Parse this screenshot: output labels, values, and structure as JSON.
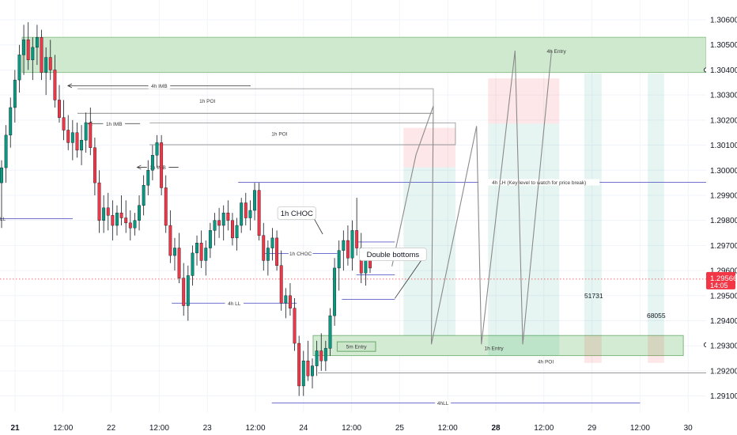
{
  "chart_data": {
    "type": "candlestick",
    "y_axis": {
      "range": [
        1.2893,
        1.3065
      ],
      "ticks": [
        "1.30600",
        "1.30500",
        "1.30400",
        "1.30300",
        "1.30200",
        "1.30100",
        "1.30000",
        "1.29900",
        "1.29800",
        "1.29700",
        "1.29600",
        "1.29500",
        "1.29400",
        "1.29300",
        "1.29200",
        "1.29100",
        "1.29000"
      ]
    },
    "x_axis": {
      "ticks": [
        {
          "label": "21",
          "bold": true,
          "t": 0.0
        },
        {
          "label": "12:00",
          "bold": false,
          "t": 0.5
        },
        {
          "label": "22",
          "bold": false,
          "t": 1.0
        },
        {
          "label": "12:00",
          "bold": false,
          "t": 1.5
        },
        {
          "label": "23",
          "bold": false,
          "t": 2.0
        },
        {
          "label": "12:00",
          "bold": false,
          "t": 2.5
        },
        {
          "label": "24",
          "bold": false,
          "t": 3.0
        },
        {
          "label": "12:00",
          "bold": false,
          "t": 3.5
        },
        {
          "label": "25",
          "bold": false,
          "t": 4.0
        },
        {
          "label": "12:00",
          "bold": false,
          "t": 4.5
        },
        {
          "label": "28",
          "bold": true,
          "t": 5.0
        },
        {
          "label": "12:00",
          "bold": false,
          "t": 5.5
        },
        {
          "label": "29",
          "bold": false,
          "t": 6.0
        },
        {
          "label": "12:00",
          "bold": false,
          "t": 6.5
        },
        {
          "label": "30",
          "bold": false,
          "t": 7.0
        }
      ]
    },
    "price_badge": {
      "price": 1.29566,
      "label": "1.29566",
      "countdown": "14:05",
      "color": "#f23645"
    },
    "candles": [
      [
        1.2995,
        1.3004,
        1.2977,
        1.3001
      ],
      [
        1.3001,
        1.3018,
        1.2995,
        1.3014
      ],
      [
        1.3014,
        1.3029,
        1.3009,
        1.3025
      ],
      [
        1.3025,
        1.304,
        1.3019,
        1.3036
      ],
      [
        1.3036,
        1.305,
        1.3031,
        1.3046
      ],
      [
        1.3046,
        1.3058,
        1.3038,
        1.3052
      ],
      [
        1.3052,
        1.3059,
        1.304,
        1.3044
      ],
      [
        1.3044,
        1.3053,
        1.3036,
        1.3049
      ],
      [
        1.3049,
        1.3058,
        1.3042,
        1.3053
      ],
      [
        1.3053,
        1.3056,
        1.3036,
        1.3039
      ],
      [
        1.3039,
        1.3049,
        1.303,
        1.3045
      ],
      [
        1.3045,
        1.3052,
        1.3036,
        1.304
      ],
      [
        1.304,
        1.3046,
        1.3025,
        1.3028
      ],
      [
        1.3028,
        1.3034,
        1.3019,
        1.3021
      ],
      [
        1.3021,
        1.3028,
        1.3012,
        1.3016
      ],
      [
        1.3016,
        1.3022,
        1.3008,
        1.3011
      ],
      [
        1.3011,
        1.302,
        1.3004,
        1.3015
      ],
      [
        1.3015,
        1.3019,
        1.3005,
        1.3008
      ],
      [
        1.3008,
        1.3018,
        1.3002,
        1.3012
      ],
      [
        1.3012,
        1.3023,
        1.3007,
        1.3019
      ],
      [
        1.3019,
        1.3025,
        1.3006,
        1.3009
      ],
      [
        1.3009,
        1.3013,
        1.299,
        1.2995
      ],
      [
        1.2995,
        1.3,
        1.2975,
        1.298
      ],
      [
        1.298,
        1.299,
        1.2975,
        1.2985
      ],
      [
        1.2985,
        1.2991,
        1.2976,
        1.2982
      ],
      [
        1.2982,
        1.2988,
        1.2972,
        1.2978
      ],
      [
        1.2978,
        1.2986,
        1.2974,
        1.2983
      ],
      [
        1.2983,
        1.299,
        1.2978,
        1.2981
      ],
      [
        1.2981,
        1.2988,
        1.2975,
        1.2979
      ],
      [
        1.2979,
        1.2984,
        1.2972,
        1.2977
      ],
      [
        1.2977,
        1.2983,
        1.2974,
        1.298
      ],
      [
        1.298,
        1.299,
        1.2976,
        1.2986
      ],
      [
        1.2986,
        1.2998,
        1.2982,
        1.2994
      ],
      [
        1.2994,
        1.3004,
        1.299,
        1.3
      ],
      [
        1.3,
        1.301,
        1.2996,
        1.3006
      ],
      [
        1.3006,
        1.3014,
        1.3001,
        1.3011
      ],
      [
        1.3011,
        1.3014,
        1.299,
        1.2993
      ],
      [
        1.2993,
        1.2998,
        1.2975,
        1.2978
      ],
      [
        1.2978,
        1.2984,
        1.2963,
        1.2966
      ],
      [
        1.2966,
        1.2973,
        1.296,
        1.2969
      ],
      [
        1.2969,
        1.2975,
        1.2955,
        1.2957
      ],
      [
        1.2957,
        1.2963,
        1.2942,
        1.2946
      ],
      [
        1.2946,
        1.2962,
        1.294,
        1.2958
      ],
      [
        1.2958,
        1.297,
        1.2954,
        1.2967
      ],
      [
        1.2967,
        1.2974,
        1.2962,
        1.2971
      ],
      [
        1.2971,
        1.2976,
        1.2961,
        1.2964
      ],
      [
        1.2964,
        1.2972,
        1.2958,
        1.2969
      ],
      [
        1.2969,
        1.2979,
        1.2965,
        1.2976
      ],
      [
        1.2976,
        1.2983,
        1.297,
        1.298
      ],
      [
        1.298,
        1.2985,
        1.2973,
        1.2978
      ],
      [
        1.2978,
        1.2986,
        1.2972,
        1.2983
      ],
      [
        1.2983,
        1.2988,
        1.2976,
        1.298
      ],
      [
        1.298,
        1.2983,
        1.297,
        1.2973
      ],
      [
        1.2973,
        1.2981,
        1.2968,
        1.2978
      ],
      [
        1.2978,
        1.2989,
        1.2975,
        1.2987
      ],
      [
        1.2987,
        1.2991,
        1.2978,
        1.2981
      ],
      [
        1.2981,
        1.2988,
        1.2976,
        1.2984
      ],
      [
        1.2984,
        1.2995,
        1.298,
        1.2992
      ],
      [
        1.2992,
        1.2995,
        1.2972,
        1.2974
      ],
      [
        1.2974,
        1.2979,
        1.296,
        1.2964
      ],
      [
        1.2964,
        1.2972,
        1.2958,
        1.2969
      ],
      [
        1.2969,
        1.2977,
        1.2964,
        1.2973
      ],
      [
        1.2973,
        1.2976,
        1.296,
        1.2962
      ],
      [
        1.2962,
        1.2968,
        1.2944,
        1.2947
      ],
      [
        1.2947,
        1.2953,
        1.2941,
        1.295
      ],
      [
        1.295,
        1.2955,
        1.2942,
        1.2945
      ],
      [
        1.2945,
        1.2949,
        1.2928,
        1.2931
      ],
      [
        1.2931,
        1.2934,
        1.291,
        1.2914
      ],
      [
        1.2914,
        1.2928,
        1.291,
        1.2924
      ],
      [
        1.2924,
        1.2932,
        1.2916,
        1.2918
      ],
      [
        1.2918,
        1.2925,
        1.2913,
        1.2922
      ],
      [
        1.2922,
        1.2932,
        1.2918,
        1.2928
      ],
      [
        1.2928,
        1.2935,
        1.292,
        1.2924
      ],
      [
        1.2924,
        1.2932,
        1.292,
        1.2929
      ],
      [
        1.2929,
        1.2945,
        1.2926,
        1.2942
      ],
      [
        1.2942,
        1.2965,
        1.2938,
        1.2961
      ],
      [
        1.2961,
        1.2972,
        1.2952,
        1.2968
      ],
      [
        1.2968,
        1.2976,
        1.296,
        1.2972
      ],
      [
        1.2972,
        1.2978,
        1.2962,
        1.2965
      ],
      [
        1.2965,
        1.298,
        1.296,
        1.2976
      ],
      [
        1.2976,
        1.2989,
        1.2966,
        1.2969
      ],
      [
        1.2969,
        1.2975,
        1.2955,
        1.2959
      ],
      [
        1.2959,
        1.2968,
        1.2954,
        1.2964
      ],
      [
        1.2964,
        1.2969,
        1.2959,
        1.2961
      ]
    ],
    "zones": [
      {
        "kind": "supply",
        "label": "",
        "p_hi": 1.3053,
        "p_lo": 1.3039,
        "t_start": -0.5,
        "t_end": 8.0,
        "fill": "#cfe9cf",
        "stroke": "#8fc48f"
      },
      {
        "kind": "demand",
        "label": "4h POI",
        "p_hi": 1.29341,
        "p_lo": 1.29261,
        "t_start": 3.1,
        "t_end": 6.95,
        "fill": "#d2ebd2",
        "stroke": "#7fb87f"
      },
      {
        "kind": "small-box",
        "label": "5m Entry",
        "p_hi": 1.29316,
        "p_lo": 1.29278,
        "t_start": 3.35,
        "t_end": 3.75,
        "fill": "#cbe6cb",
        "stroke": "#6aa86a"
      }
    ],
    "positions": [
      {
        "t_start": 4.04,
        "t_end": 4.58,
        "entry": 1.30012,
        "stop": 1.30169,
        "target": 1.29341,
        "label": ""
      },
      {
        "t_start": 4.92,
        "t_end": 5.66,
        "entry": 1.30186,
        "stop": 1.30366,
        "target": 1.29261,
        "label": ""
      },
      {
        "t_start": 5.92,
        "t_end": 6.1,
        "entry": 1.29341,
        "stop": 1.29232,
        "target": 1.30386,
        "label": "51731"
      },
      {
        "t_start": 6.58,
        "t_end": 6.75,
        "entry": 1.29341,
        "stop": 1.29232,
        "target": 1.30386,
        "label": "68055"
      }
    ],
    "hlines": [
      {
        "price": 1.29807,
        "t_start": -0.8,
        "t_end": 0.6,
        "color": "#5b5fc7",
        "label": "LL",
        "label_t": -0.02,
        "label_side": "start"
      },
      {
        "price": 1.2947,
        "t_start": 1.63,
        "t_end": 2.93,
        "color": "#5b5fc7",
        "label": "4h LL",
        "label_t": 2.28,
        "label_side": "center"
      },
      {
        "price": 1.29072,
        "t_start": 2.67,
        "t_end": 6.5,
        "color": "#5b5fc7",
        "label": "4hLL",
        "label_t": 4.45,
        "label_side": "center"
      },
      {
        "price": 1.29952,
        "t_start": 2.32,
        "t_end": 7.35,
        "color": "#5b5fc7",
        "label": "4h LH (Key level to watch for price break)",
        "label_t": 5.45,
        "label_side": "center"
      },
      {
        "price": 1.29668,
        "t_start": 2.6,
        "t_end": 3.35,
        "color": "#5b5fc7",
        "label": "1h CHOC",
        "label_t": 2.97,
        "label_side": "center"
      },
      {
        "price": 1.29192,
        "t_start": 3.15,
        "t_end": 7.35,
        "color": "#888888",
        "label": "",
        "label_t": 0,
        "label_side": "center"
      },
      {
        "price": 1.30102,
        "t_start": 1.4,
        "t_end": 4.58,
        "color": "#888888",
        "label": "",
        "label_t": 0,
        "label_side": "center"
      },
      {
        "price": 1.30227,
        "t_start": 0.65,
        "t_end": 4.35,
        "color": "#888888",
        "label": "",
        "label_t": 0,
        "label_side": "center"
      },
      {
        "price": 1.29714,
        "t_start": 3.55,
        "t_end": 3.95,
        "color": "#5b5fc7",
        "label": "",
        "label_t": 0,
        "label_side": "center"
      },
      {
        "price": 1.29583,
        "t_start": 3.55,
        "t_end": 3.95,
        "color": "#5b5fc7",
        "label": "",
        "label_t": 0,
        "label_side": "center"
      },
      {
        "price": 1.29485,
        "t_start": 3.4,
        "t_end": 3.95,
        "color": "#5b5fc7",
        "label": "",
        "label_t": 0,
        "label_side": "center"
      }
    ],
    "brackets": [
      {
        "label": "1h POI",
        "p_top": 1.30325,
        "p_bot": 1.30227,
        "t_start": 0.65,
        "t_end": 4.35,
        "label_t": 2.0
      },
      {
        "label": "1h POI",
        "p_top": 1.30189,
        "p_bot": 1.30102,
        "t_start": 1.4,
        "t_end": 4.58,
        "label_t": 2.75
      }
    ],
    "arrows": [
      {
        "label": "4h IMB",
        "price": 1.30337,
        "t_tip": 0.55,
        "t_end": 2.45
      },
      {
        "label": "1h IMB",
        "price": 1.30186,
        "t_tip": 0.76,
        "t_end": 1.3
      },
      {
        "label": "1h IMB",
        "price": 1.30012,
        "t_tip": 1.27,
        "t_end": 1.7
      }
    ],
    "path": [
      [
        3.92,
        1.29617
      ],
      [
        4.17,
        1.30062
      ],
      [
        4.35,
        1.30256
      ],
      [
        4.33,
        1.29306
      ],
      [
        4.8,
        1.30176
      ],
      [
        4.85,
        1.29306
      ],
      [
        5.2,
        1.30477
      ],
      [
        5.28,
        1.29306
      ],
      [
        5.58,
        1.30477
      ]
    ],
    "path_labels": [
      {
        "label": "4h Entry",
        "t": 5.63,
        "price": 1.30475
      },
      {
        "label": "1h Entry",
        "t": 4.98,
        "price": 1.29291
      }
    ],
    "callouts": [
      {
        "label": "1h CHOC",
        "t": 2.93,
        "price": 1.29829,
        "arrow_t": 3.2,
        "arrow_p": 1.29745
      },
      {
        "label": "Double bottoms",
        "t": 3.93,
        "price": 1.29665,
        "arrow_t": 3.95,
        "arrow_p": 1.29489
      }
    ],
    "right_markers": [
      1.304,
      1.29304
    ],
    "current_price_line": 1.29566
  }
}
